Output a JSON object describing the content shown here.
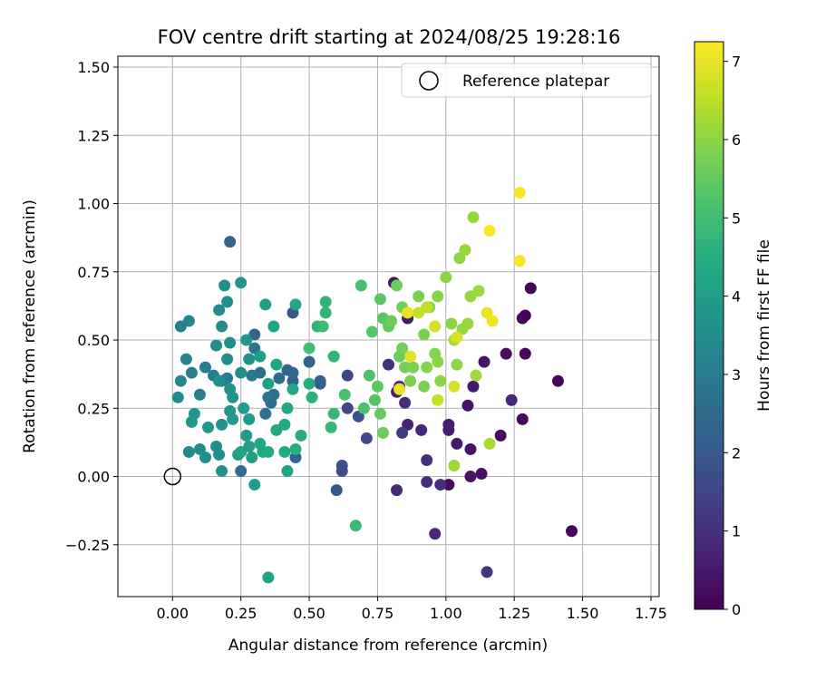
{
  "chart_data": {
    "type": "scatter",
    "title": "FOV centre drift starting at 2024/08/25 19:28:16",
    "xlabel": "Angular distance from reference (arcmin)",
    "ylabel": "Rotation from reference (arcmin)",
    "xlim": [
      -0.2,
      1.78
    ],
    "ylim": [
      -0.44,
      1.54
    ],
    "xticks": [
      "0.00",
      "0.25",
      "0.50",
      "0.75",
      "1.00",
      "1.25",
      "1.50",
      "1.75"
    ],
    "yticks": [
      "−0.25",
      "0.00",
      "0.25",
      "0.50",
      "0.75",
      "1.00",
      "1.25",
      "1.50"
    ],
    "grid": true,
    "legend": {
      "placement": "top-right",
      "entries": [
        "Reference platepar"
      ]
    },
    "reference_point": {
      "x": 0.0,
      "y": 0.0
    },
    "colorbar": {
      "label": "Hours from first FF file",
      "colormap": "viridis",
      "range": [
        0,
        7.25
      ],
      "ticks": [
        "0",
        "1",
        "2",
        "3",
        "4",
        "5",
        "6",
        "7"
      ]
    },
    "points": [
      {
        "x": 1.46,
        "y": -0.2,
        "c": 0.1
      },
      {
        "x": 1.41,
        "y": 0.35,
        "c": 0.1
      },
      {
        "x": 1.31,
        "y": 0.69,
        "c": 0.1
      },
      {
        "x": 1.29,
        "y": 0.59,
        "c": 0.1
      },
      {
        "x": 1.28,
        "y": 0.58,
        "c": 0.1
      },
      {
        "x": 1.29,
        "y": 0.45,
        "c": 0.15
      },
      {
        "x": 1.28,
        "y": 0.21,
        "c": 0.15
      },
      {
        "x": 1.2,
        "y": 0.15,
        "c": 0.2
      },
      {
        "x": 1.22,
        "y": 0.45,
        "c": 0.3
      },
      {
        "x": 1.13,
        "y": 0.01,
        "c": 0.3
      },
      {
        "x": 1.09,
        "y": 0.0,
        "c": 0.35
      },
      {
        "x": 1.09,
        "y": 0.1,
        "c": 0.4
      },
      {
        "x": 1.14,
        "y": 0.42,
        "c": 0.4
      },
      {
        "x": 1.08,
        "y": 0.26,
        "c": 0.4
      },
      {
        "x": 1.1,
        "y": 0.33,
        "c": 0.5
      },
      {
        "x": 1.04,
        "y": 0.12,
        "c": 0.5
      },
      {
        "x": 1.01,
        "y": -0.03,
        "c": 0.2
      },
      {
        "x": 1.01,
        "y": 0.19,
        "c": 0.6
      },
      {
        "x": 1.01,
        "y": 0.17,
        "c": 0.6
      },
      {
        "x": 0.98,
        "y": -0.03,
        "c": 0.9
      },
      {
        "x": 0.96,
        "y": -0.21,
        "c": 0.8
      },
      {
        "x": 0.93,
        "y": -0.02,
        "c": 0.9
      },
      {
        "x": 0.93,
        "y": 0.06,
        "c": 1.0
      },
      {
        "x": 0.91,
        "y": 0.17,
        "c": 0.8
      },
      {
        "x": 0.86,
        "y": 0.19,
        "c": 0.7
      },
      {
        "x": 0.85,
        "y": 0.27,
        "c": 1.0
      },
      {
        "x": 0.84,
        "y": 0.16,
        "c": 1.2
      },
      {
        "x": 0.83,
        "y": 0.33,
        "c": 0.9
      },
      {
        "x": 0.82,
        "y": 0.31,
        "c": 0.7
      },
      {
        "x": 0.82,
        "y": -0.05,
        "c": 0.8
      },
      {
        "x": 0.86,
        "y": 0.58,
        "c": 0.5
      },
      {
        "x": 0.81,
        "y": 0.71,
        "c": 0.3
      },
      {
        "x": 0.79,
        "y": 0.41,
        "c": 1.0
      },
      {
        "x": 1.24,
        "y": 0.28,
        "c": 0.8
      },
      {
        "x": 1.15,
        "y": -0.35,
        "c": 1.1
      },
      {
        "x": 0.71,
        "y": 0.14,
        "c": 1.5
      },
      {
        "x": 0.68,
        "y": 0.22,
        "c": 1.8
      },
      {
        "x": 0.64,
        "y": 0.25,
        "c": 1.5
      },
      {
        "x": 0.64,
        "y": 0.37,
        "c": 1.5
      },
      {
        "x": 0.62,
        "y": 0.04,
        "c": 1.8
      },
      {
        "x": 0.62,
        "y": 0.02,
        "c": 1.7
      },
      {
        "x": 0.6,
        "y": -0.05,
        "c": 2.0
      },
      {
        "x": 0.54,
        "y": 0.34,
        "c": 2.0
      },
      {
        "x": 0.54,
        "y": 0.35,
        "c": 2.2
      },
      {
        "x": 0.5,
        "y": 0.42,
        "c": 2.3
      },
      {
        "x": 0.44,
        "y": 0.35,
        "c": 2.2
      },
      {
        "x": 0.44,
        "y": 0.6,
        "c": 2.0
      },
      {
        "x": 0.45,
        "y": 0.07,
        "c": 2.3
      },
      {
        "x": 0.44,
        "y": 0.38,
        "c": 2.4
      },
      {
        "x": 0.42,
        "y": 0.39,
        "c": 2.4
      },
      {
        "x": 0.39,
        "y": 0.36,
        "c": 2.5
      },
      {
        "x": 0.37,
        "y": 0.3,
        "c": 2.6
      },
      {
        "x": 0.36,
        "y": 0.27,
        "c": 2.6
      },
      {
        "x": 0.35,
        "y": 0.29,
        "c": 2.8
      },
      {
        "x": 0.34,
        "y": 0.23,
        "c": 2.7
      },
      {
        "x": 0.32,
        "y": 0.38,
        "c": 2.7
      },
      {
        "x": 0.3,
        "y": 0.52,
        "c": 2.4
      },
      {
        "x": 0.3,
        "y": 0.47,
        "c": 2.8
      },
      {
        "x": 0.29,
        "y": 0.37,
        "c": 2.8
      },
      {
        "x": 0.25,
        "y": 0.02,
        "c": 2.6
      },
      {
        "x": 0.21,
        "y": 0.86,
        "c": 2.3
      },
      {
        "x": 0.2,
        "y": 0.36,
        "c": 3.0
      },
      {
        "x": 0.18,
        "y": 0.35,
        "c": 3.0
      },
      {
        "x": 0.15,
        "y": 0.37,
        "c": 3.0
      },
      {
        "x": 0.12,
        "y": 0.4,
        "c": 3.0
      },
      {
        "x": 0.1,
        "y": 0.3,
        "c": 3.0
      },
      {
        "x": 0.07,
        "y": 0.38,
        "c": 3.1
      },
      {
        "x": 0.05,
        "y": 0.43,
        "c": 3.2
      },
      {
        "x": 0.03,
        "y": 0.55,
        "c": 3.2
      },
      {
        "x": 0.06,
        "y": 0.57,
        "c": 3.2
      },
      {
        "x": 0.03,
        "y": 0.35,
        "c": 3.4
      },
      {
        "x": 0.02,
        "y": 0.29,
        "c": 3.5
      },
      {
        "x": 0.06,
        "y": 0.09,
        "c": 3.4
      },
      {
        "x": 0.1,
        "y": 0.1,
        "c": 3.5
      },
      {
        "x": 0.12,
        "y": 0.07,
        "c": 3.6
      },
      {
        "x": 0.07,
        "y": 0.2,
        "c": 3.8
      },
      {
        "x": 0.08,
        "y": 0.23,
        "c": 3.8
      },
      {
        "x": 0.13,
        "y": 0.18,
        "c": 3.8
      },
      {
        "x": 0.16,
        "y": 0.11,
        "c": 3.6
      },
      {
        "x": 0.17,
        "y": 0.08,
        "c": 3.6
      },
      {
        "x": 0.18,
        "y": 0.02,
        "c": 3.6
      },
      {
        "x": 0.18,
        "y": 0.19,
        "c": 3.7
      },
      {
        "x": 0.19,
        "y": 0.7,
        "c": 3.6
      },
      {
        "x": 0.2,
        "y": 0.64,
        "c": 3.5
      },
      {
        "x": 0.17,
        "y": 0.61,
        "c": 3.5
      },
      {
        "x": 0.18,
        "y": 0.55,
        "c": 3.5
      },
      {
        "x": 0.2,
        "y": 0.43,
        "c": 3.5
      },
      {
        "x": 0.21,
        "y": 0.49,
        "c": 3.6
      },
      {
        "x": 0.16,
        "y": 0.48,
        "c": 3.5
      },
      {
        "x": 0.17,
        "y": 0.35,
        "c": 3.6
      },
      {
        "x": 0.21,
        "y": 0.32,
        "c": 3.7
      },
      {
        "x": 0.22,
        "y": 0.29,
        "c": 3.7
      },
      {
        "x": 0.25,
        "y": 0.38,
        "c": 3.6
      },
      {
        "x": 0.25,
        "y": 0.71,
        "c": 3.8
      },
      {
        "x": 0.27,
        "y": 0.5,
        "c": 3.8
      },
      {
        "x": 0.28,
        "y": 0.43,
        "c": 3.7
      },
      {
        "x": 0.21,
        "y": 0.24,
        "c": 3.8
      },
      {
        "x": 0.22,
        "y": 0.21,
        "c": 3.9
      },
      {
        "x": 0.26,
        "y": 0.25,
        "c": 3.9
      },
      {
        "x": 0.27,
        "y": 0.15,
        "c": 3.9
      },
      {
        "x": 0.28,
        "y": 0.21,
        "c": 3.9
      },
      {
        "x": 0.28,
        "y": 0.11,
        "c": 4.0
      },
      {
        "x": 0.29,
        "y": 0.07,
        "c": 4.0
      },
      {
        "x": 0.3,
        "y": -0.03,
        "c": 4.0
      },
      {
        "x": 0.24,
        "y": 0.08,
        "c": 4.0
      },
      {
        "x": 0.25,
        "y": 0.09,
        "c": 4.2
      },
      {
        "x": 0.33,
        "y": 0.09,
        "c": 4.3
      },
      {
        "x": 0.35,
        "y": 0.09,
        "c": 4.4
      },
      {
        "x": 0.32,
        "y": 0.12,
        "c": 4.3
      },
      {
        "x": 0.35,
        "y": -0.37,
        "c": 4.2
      },
      {
        "x": 0.34,
        "y": 0.63,
        "c": 4.1
      },
      {
        "x": 0.37,
        "y": 0.55,
        "c": 4.2
      },
      {
        "x": 0.35,
        "y": 0.34,
        "c": 4.0
      },
      {
        "x": 0.32,
        "y": 0.44,
        "c": 4.0
      },
      {
        "x": 0.38,
        "y": 0.41,
        "c": 4.3
      },
      {
        "x": 0.38,
        "y": 0.17,
        "c": 4.4
      },
      {
        "x": 0.41,
        "y": 0.19,
        "c": 4.4
      },
      {
        "x": 0.42,
        "y": 0.25,
        "c": 4.3
      },
      {
        "x": 0.42,
        "y": 0.02,
        "c": 4.2
      },
      {
        "x": 0.41,
        "y": 0.09,
        "c": 4.4
      },
      {
        "x": 0.44,
        "y": 0.32,
        "c": 4.3
      },
      {
        "x": 0.45,
        "y": 0.63,
        "c": 4.3
      },
      {
        "x": 0.45,
        "y": 0.1,
        "c": 4.5
      },
      {
        "x": 0.47,
        "y": 0.15,
        "c": 4.5
      },
      {
        "x": 0.5,
        "y": 0.34,
        "c": 4.5
      },
      {
        "x": 0.51,
        "y": 0.29,
        "c": 4.6
      },
      {
        "x": 0.53,
        "y": 0.55,
        "c": 4.7
      },
      {
        "x": 0.56,
        "y": 0.64,
        "c": 4.7
      },
      {
        "x": 0.56,
        "y": 0.6,
        "c": 4.7
      },
      {
        "x": 0.59,
        "y": 0.44,
        "c": 4.7
      },
      {
        "x": 0.58,
        "y": 0.18,
        "c": 4.8
      },
      {
        "x": 0.59,
        "y": 0.23,
        "c": 4.8
      },
      {
        "x": 0.67,
        "y": -0.18,
        "c": 4.9
      },
      {
        "x": 0.5,
        "y": 0.47,
        "c": 5.0
      },
      {
        "x": 0.55,
        "y": 0.55,
        "c": 5.0
      },
      {
        "x": 0.63,
        "y": 0.3,
        "c": 5.1
      },
      {
        "x": 0.69,
        "y": 0.7,
        "c": 5.1
      },
      {
        "x": 0.7,
        "y": 0.25,
        "c": 5.2
      },
      {
        "x": 0.72,
        "y": 0.37,
        "c": 5.2
      },
      {
        "x": 0.73,
        "y": 0.53,
        "c": 5.3
      },
      {
        "x": 0.74,
        "y": 0.28,
        "c": 5.3
      },
      {
        "x": 0.75,
        "y": 0.33,
        "c": 5.4
      },
      {
        "x": 0.77,
        "y": 0.58,
        "c": 5.3
      },
      {
        "x": 0.76,
        "y": 0.65,
        "c": 5.4
      },
      {
        "x": 0.76,
        "y": 0.23,
        "c": 5.5
      },
      {
        "x": 0.79,
        "y": 0.55,
        "c": 5.5
      },
      {
        "x": 0.8,
        "y": 0.57,
        "c": 5.6
      },
      {
        "x": 0.77,
        "y": 0.16,
        "c": 5.6
      },
      {
        "x": 0.82,
        "y": 0.7,
        "c": 5.6
      },
      {
        "x": 0.83,
        "y": 0.44,
        "c": 5.6
      },
      {
        "x": 0.84,
        "y": 0.62,
        "c": 5.7
      },
      {
        "x": 0.84,
        "y": 0.47,
        "c": 5.7
      },
      {
        "x": 0.85,
        "y": 0.4,
        "c": 5.7
      },
      {
        "x": 0.87,
        "y": 0.35,
        "c": 5.8
      },
      {
        "x": 0.88,
        "y": 0.4,
        "c": 5.8
      },
      {
        "x": 0.9,
        "y": 0.66,
        "c": 5.8
      },
      {
        "x": 0.92,
        "y": 0.52,
        "c": 5.8
      },
      {
        "x": 0.92,
        "y": 0.33,
        "c": 5.8
      },
      {
        "x": 0.93,
        "y": 0.4,
        "c": 5.9
      },
      {
        "x": 0.94,
        "y": 0.62,
        "c": 5.9
      },
      {
        "x": 0.96,
        "y": 0.45,
        "c": 5.9
      },
      {
        "x": 0.97,
        "y": 0.66,
        "c": 5.9
      },
      {
        "x": 0.97,
        "y": 0.42,
        "c": 6.0
      },
      {
        "x": 0.98,
        "y": 0.35,
        "c": 6.0
      },
      {
        "x": 1.0,
        "y": 0.73,
        "c": 6.0
      },
      {
        "x": 1.02,
        "y": 0.56,
        "c": 6.0
      },
      {
        "x": 1.04,
        "y": 0.41,
        "c": 6.0
      },
      {
        "x": 1.05,
        "y": 0.8,
        "c": 6.0
      },
      {
        "x": 1.06,
        "y": 0.54,
        "c": 6.1
      },
      {
        "x": 1.07,
        "y": 0.83,
        "c": 6.1
      },
      {
        "x": 1.08,
        "y": 0.56,
        "c": 6.1
      },
      {
        "x": 1.09,
        "y": 0.66,
        "c": 6.1
      },
      {
        "x": 1.1,
        "y": 0.95,
        "c": 6.1
      },
      {
        "x": 1.11,
        "y": 0.37,
        "c": 6.2
      },
      {
        "x": 1.12,
        "y": 0.68,
        "c": 6.2
      },
      {
        "x": 1.03,
        "y": 0.04,
        "c": 6.2
      },
      {
        "x": 1.16,
        "y": 0.12,
        "c": 6.3
      },
      {
        "x": 1.03,
        "y": 0.5,
        "c": 6.3
      },
      {
        "x": 0.9,
        "y": 0.6,
        "c": 6.6
      },
      {
        "x": 0.93,
        "y": 0.62,
        "c": 6.6
      },
      {
        "x": 0.97,
        "y": 0.28,
        "c": 6.6
      },
      {
        "x": 0.96,
        "y": 0.55,
        "c": 6.8
      },
      {
        "x": 1.03,
        "y": 0.33,
        "c": 6.8
      },
      {
        "x": 1.04,
        "y": 0.51,
        "c": 6.8
      },
      {
        "x": 0.87,
        "y": 0.44,
        "c": 6.9
      },
      {
        "x": 0.86,
        "y": 0.6,
        "c": 7.0
      },
      {
        "x": 0.83,
        "y": 0.32,
        "c": 7.0
      },
      {
        "x": 1.15,
        "y": 0.6,
        "c": 7.0
      },
      {
        "x": 1.17,
        "y": 0.57,
        "c": 7.1
      },
      {
        "x": 1.16,
        "y": 0.9,
        "c": 7.2
      },
      {
        "x": 1.27,
        "y": 1.04,
        "c": 7.2
      },
      {
        "x": 1.27,
        "y": 0.79,
        "c": 7.2
      }
    ]
  }
}
